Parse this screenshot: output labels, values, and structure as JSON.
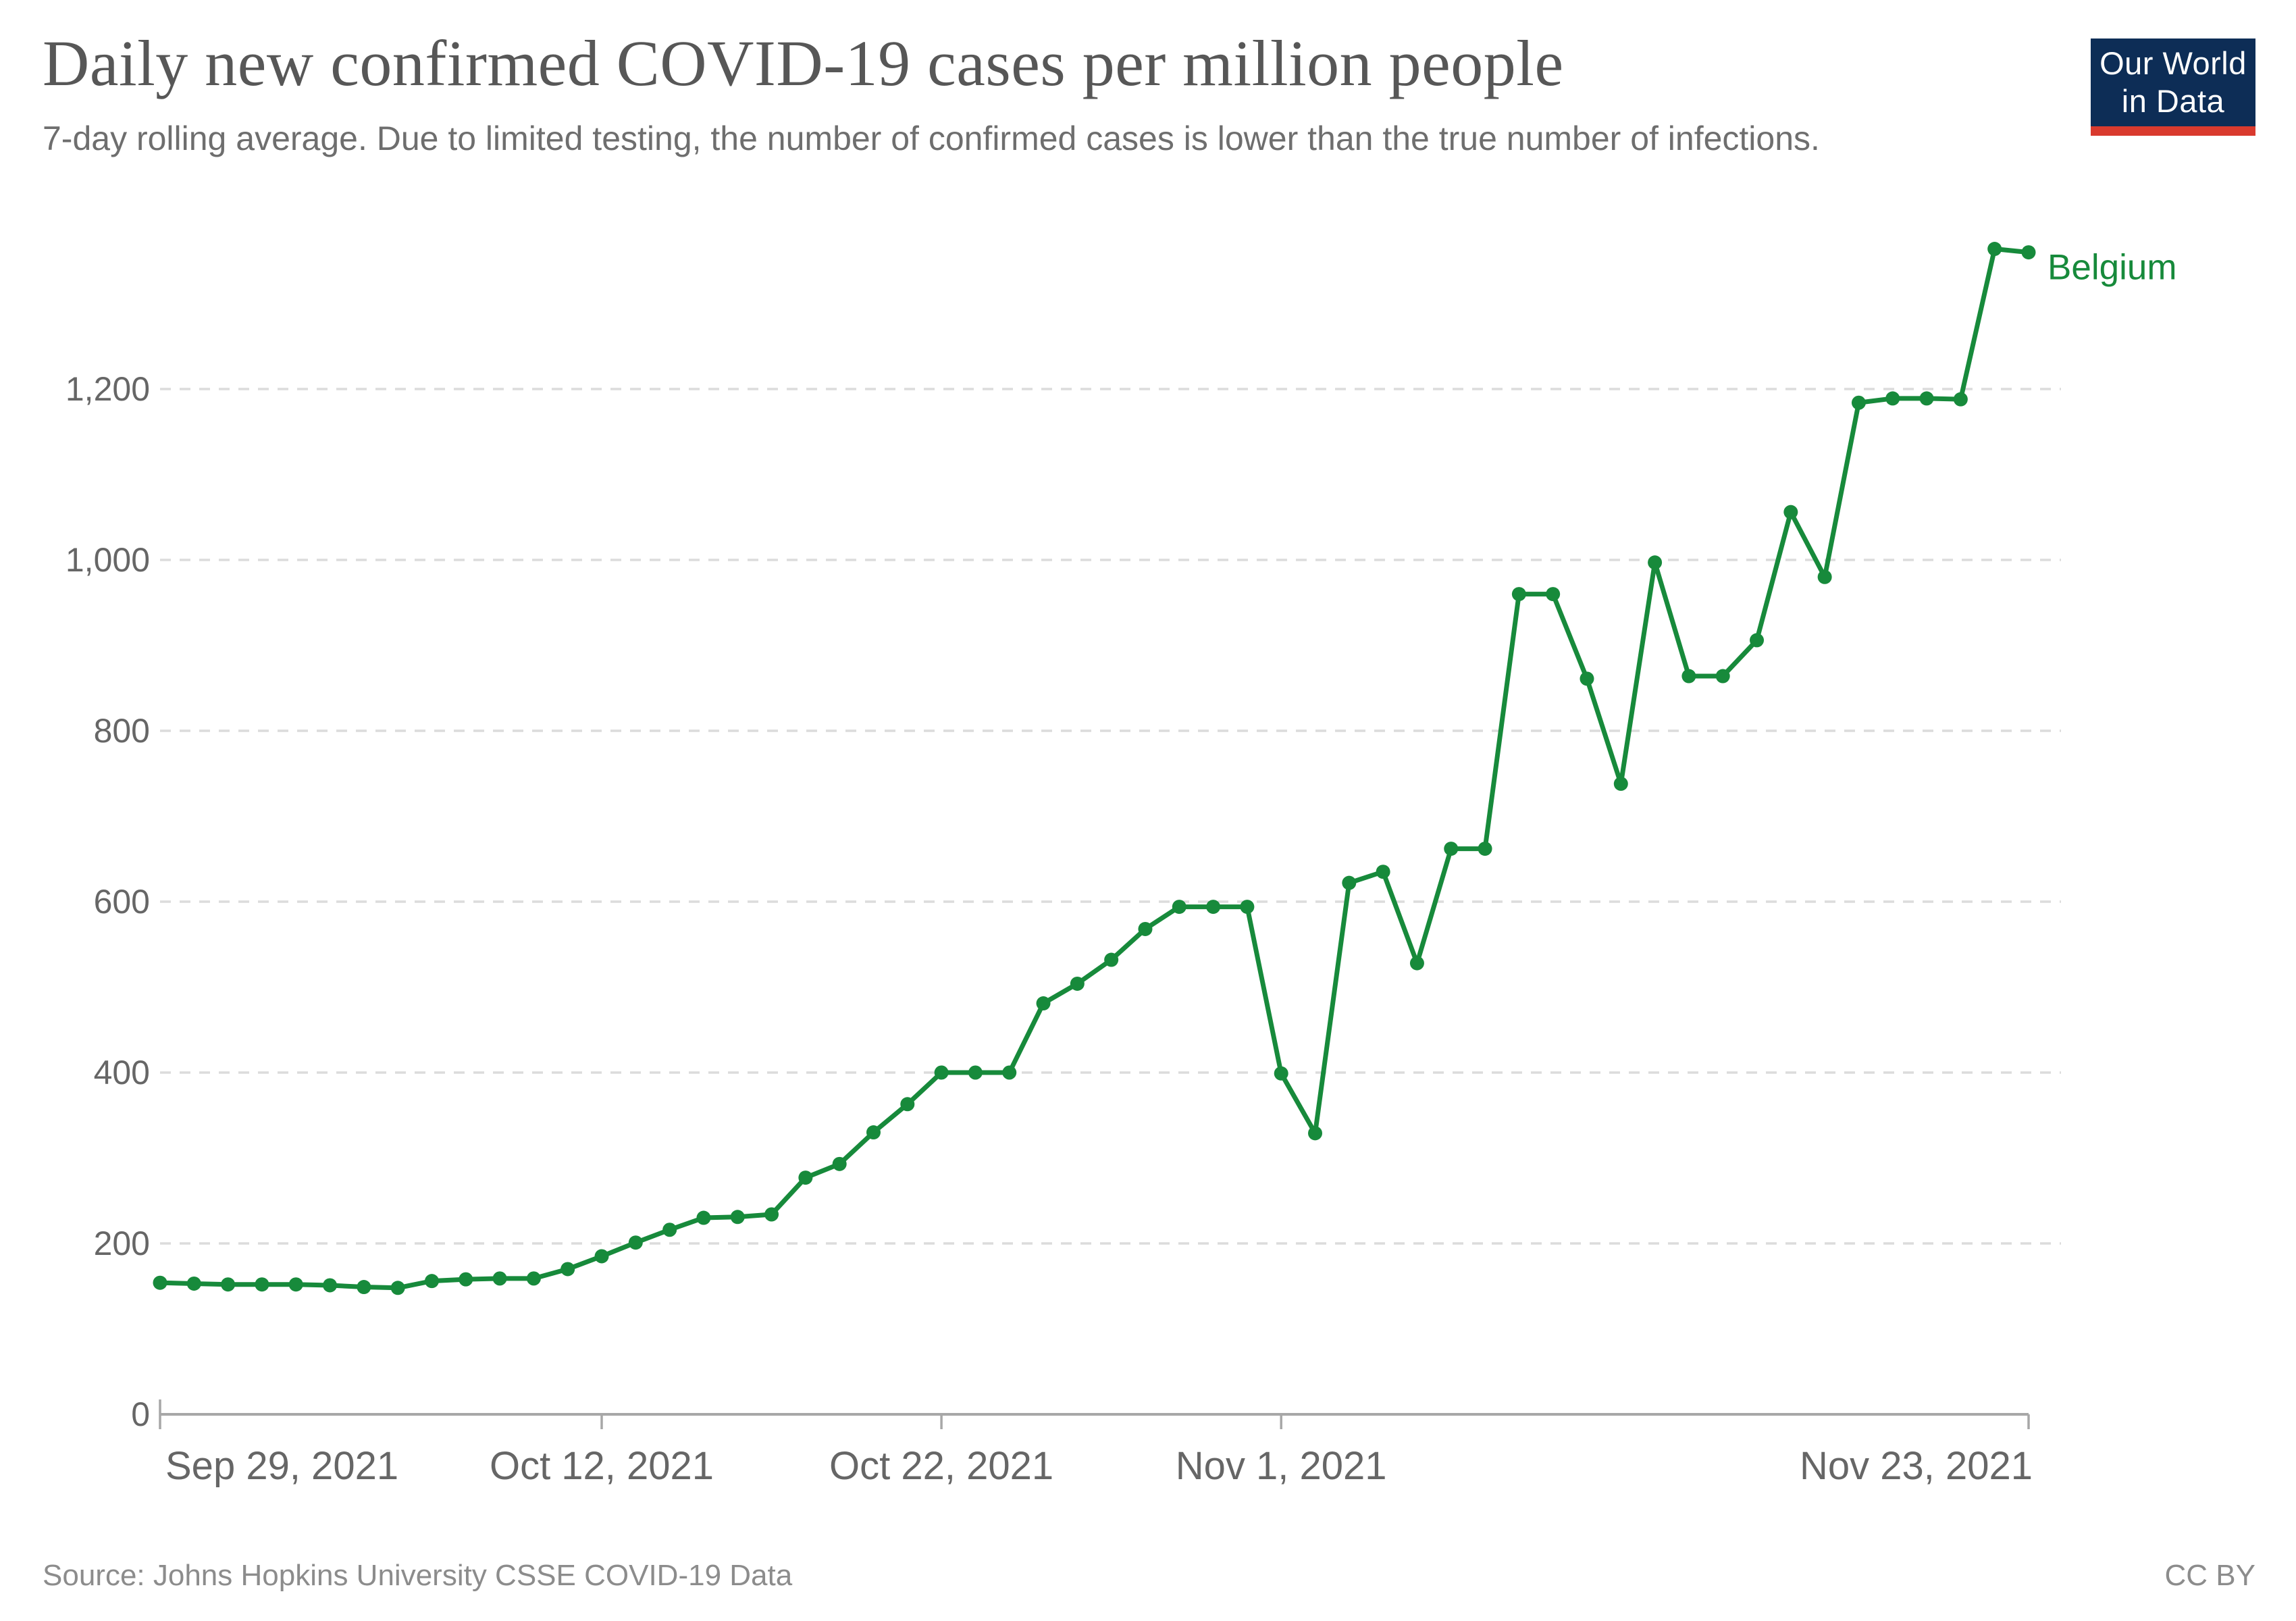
{
  "header": {
    "title": "Daily new confirmed COVID-19 cases per million people",
    "subtitle": "7-day rolling average. Due to limited testing, the number of confirmed cases is lower than the true number of infections.",
    "logo": {
      "line1": "Our World",
      "line2": "in Data",
      "bg_color": "#0D2D56",
      "stripe_color": "#D93A2E"
    }
  },
  "footer": {
    "source": "Source: Johns Hopkins University CSSE COVID-19 Data",
    "license": "CC BY"
  },
  "chart_data": {
    "type": "line",
    "title": "Daily new confirmed COVID-19 cases per million people",
    "ylabel": "",
    "xlabel": "",
    "ylim": [
      0,
      1400
    ],
    "grid": "dashed-horizontal",
    "legend_position": "end-of-line",
    "y_ticks": [
      {
        "value": 0,
        "label": "0"
      },
      {
        "value": 200,
        "label": "200"
      },
      {
        "value": 400,
        "label": "400"
      },
      {
        "value": 600,
        "label": "600"
      },
      {
        "value": 800,
        "label": "800"
      },
      {
        "value": 1000,
        "label": "1,000"
      },
      {
        "value": 1200,
        "label": "1,200"
      }
    ],
    "x_ticks": [
      {
        "label": "Sep 29, 2021",
        "day": 0
      },
      {
        "label": "Oct 12, 2021",
        "day": 13
      },
      {
        "label": "Oct 22, 2021",
        "day": 23
      },
      {
        "label": "Nov 1, 2021",
        "day": 33
      },
      {
        "label": "Nov 23, 2021",
        "day": 55
      }
    ],
    "series": [
      {
        "name": "Belgium",
        "color": "#178A3B",
        "points": [
          [
            "2021-09-29",
            154
          ],
          [
            "2021-09-30",
            153
          ],
          [
            "2021-10-01",
            152
          ],
          [
            "2021-10-02",
            152
          ],
          [
            "2021-10-03",
            152
          ],
          [
            "2021-10-04",
            151
          ],
          [
            "2021-10-05",
            149
          ],
          [
            "2021-10-06",
            148
          ],
          [
            "2021-10-07",
            156
          ],
          [
            "2021-10-08",
            158
          ],
          [
            "2021-10-09",
            159
          ],
          [
            "2021-10-10",
            159
          ],
          [
            "2021-10-11",
            170
          ],
          [
            "2021-10-12",
            185
          ],
          [
            "2021-10-13",
            201
          ],
          [
            "2021-10-14",
            216
          ],
          [
            "2021-10-15",
            230
          ],
          [
            "2021-10-16",
            231
          ],
          [
            "2021-10-17",
            234
          ],
          [
            "2021-10-18",
            277
          ],
          [
            "2021-10-19",
            293
          ],
          [
            "2021-10-20",
            330
          ],
          [
            "2021-10-21",
            363
          ],
          [
            "2021-10-22",
            400
          ],
          [
            "2021-10-23",
            400
          ],
          [
            "2021-10-24",
            400
          ],
          [
            "2021-10-25",
            481
          ],
          [
            "2021-10-26",
            504
          ],
          [
            "2021-10-27",
            532
          ],
          [
            "2021-10-28",
            568
          ],
          [
            "2021-10-29",
            594
          ],
          [
            "2021-10-30",
            594
          ],
          [
            "2021-10-31",
            594
          ],
          [
            "2021-11-01",
            399
          ],
          [
            "2021-11-02",
            329
          ],
          [
            "2021-11-03",
            622
          ],
          [
            "2021-11-04",
            635
          ],
          [
            "2021-11-05",
            528
          ],
          [
            "2021-11-06",
            662
          ],
          [
            "2021-11-07",
            662
          ],
          [
            "2021-11-08",
            960
          ],
          [
            "2021-11-09",
            960
          ],
          [
            "2021-11-10",
            861
          ],
          [
            "2021-11-11",
            738
          ],
          [
            "2021-11-12",
            997
          ],
          [
            "2021-11-13",
            864
          ],
          [
            "2021-11-14",
            864
          ],
          [
            "2021-11-15",
            906
          ],
          [
            "2021-11-16",
            1056
          ],
          [
            "2021-11-17",
            980
          ],
          [
            "2021-11-18",
            1184
          ],
          [
            "2021-11-19",
            1189
          ],
          [
            "2021-11-20",
            1189
          ],
          [
            "2021-11-21",
            1188
          ],
          [
            "2021-11-22",
            1364
          ],
          [
            "2021-11-23",
            1360
          ]
        ]
      }
    ]
  }
}
